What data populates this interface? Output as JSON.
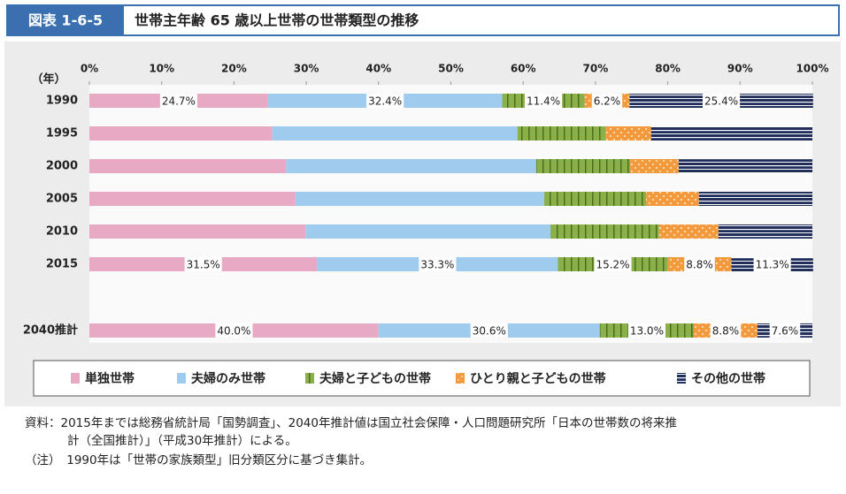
{
  "chart_data": {
    "type": "stacked-barh",
    "figure_label": "図表 1-6-5",
    "title": "世帯主年齢 65 歳以上世帯の世帯類型の推移",
    "y_label": "（年）",
    "categories": [
      "1990",
      "1995",
      "2000",
      "2005",
      "2010",
      "2015",
      "2040推計"
    ],
    "series": [
      {
        "name": "単独世帯",
        "color": "#e8a9c4",
        "pattern": "solid",
        "values": [
          24.7,
          25.3,
          27.2,
          28.5,
          29.9,
          31.5,
          40.0
        ],
        "value_labels": [
          "24.7%",
          null,
          null,
          null,
          null,
          "31.5%",
          "40.0%"
        ]
      },
      {
        "name": "夫婦のみ世帯",
        "color": "#9fcbee",
        "pattern": "solid",
        "values": [
          32.4,
          33.9,
          34.6,
          34.4,
          33.9,
          33.3,
          30.6
        ],
        "value_labels": [
          "32.4%",
          null,
          null,
          null,
          null,
          "33.3%",
          "30.6%"
        ]
      },
      {
        "name": "夫婦と子どもの世帯",
        "color": "#8ab04a",
        "pattern": "vstripe",
        "values": [
          11.4,
          12.2,
          13.0,
          14.1,
          15.0,
          15.2,
          13.0
        ],
        "value_labels": [
          "11.4%",
          null,
          null,
          null,
          null,
          "15.2%",
          "13.0%"
        ]
      },
      {
        "name": "ひとり親と子どもの世帯",
        "color": "#f39a3c",
        "pattern": "dots",
        "values": [
          6.2,
          6.3,
          6.7,
          7.3,
          8.2,
          8.8,
          8.8
        ],
        "value_labels": [
          "6.2%",
          null,
          null,
          null,
          null,
          "8.8%",
          "8.8%"
        ]
      },
      {
        "name": "その他の世帯",
        "color": "#1f2f5a",
        "pattern": "hstripe",
        "values": [
          25.4,
          22.3,
          18.5,
          15.7,
          13.0,
          11.3,
          7.6
        ],
        "value_labels": [
          "25.4%",
          null,
          null,
          null,
          null,
          "11.3%",
          "7.6%"
        ]
      }
    ],
    "xlim": [
      0,
      100
    ],
    "xticks": [
      {
        "value": 0,
        "label": "0%"
      },
      {
        "value": 10,
        "label": "10%"
      },
      {
        "value": 20,
        "label": "20%"
      },
      {
        "value": 30,
        "label": "30%"
      },
      {
        "value": 40,
        "label": "40%"
      },
      {
        "value": 50,
        "label": "50%"
      },
      {
        "value": 60,
        "label": "60%"
      },
      {
        "value": 70,
        "label": "70%"
      },
      {
        "value": 80,
        "label": "80%"
      },
      {
        "value": 90,
        "label": "90%"
      },
      {
        "value": 100,
        "label": "100%"
      }
    ],
    "grid": false,
    "notes": [
      "資料：2015年までは総務省統計局「国勢調査」、2040年推計値は国立社会保障・人口問題研究所「日本の世帯数の将来推",
      "計（全国推計）」（平成30年推計）による。",
      "（注）　1990年は「世帯の家族類型」旧分類区分に基づき集計。"
    ]
  }
}
